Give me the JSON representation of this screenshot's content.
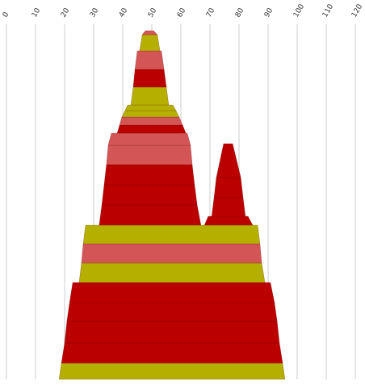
{
  "chart_data": {
    "type": "range-stack",
    "xlim": [
      0,
      120
    ],
    "xticks": [
      0,
      10,
      20,
      30,
      40,
      50,
      60,
      70,
      80,
      90,
      100,
      110,
      120
    ],
    "grid": true,
    "segments": [
      {
        "color": "#b5b000",
        "values": [
          18.1,
          95.8,
          18.9,
          95.0
        ]
      },
      {
        "color": "#bb0000",
        "values": [
          18.9,
          95.0,
          20.0,
          93.9
        ]
      },
      {
        "color": "#bb0000",
        "values": [
          20.0,
          93.9,
          20.8,
          93.1
        ]
      },
      {
        "color": "#bb0000",
        "values": [
          20.8,
          93.1,
          21.7,
          92.2
        ]
      },
      {
        "color": "#bb0000",
        "values": [
          21.7,
          92.2,
          22.8,
          90.8
        ]
      },
      {
        "color": "#b5b000",
        "values": [
          25.0,
          88.9,
          25.8,
          87.8
        ]
      },
      {
        "color": "#d45555",
        "values": [
          25.8,
          87.8,
          26.4,
          87.2
        ]
      },
      {
        "color": "#b5b000",
        "values": [
          26.4,
          87.2,
          27.2,
          86.4
        ]
      },
      {
        "color": "#bb0000",
        "values": [
          31.9,
          66.9,
          32.8,
          65.6
        ]
      },
      {
        "color": "#bb0000",
        "values": [
          32.8,
          65.6,
          33.6,
          64.7
        ]
      },
      {
        "color": "#bb0000",
        "values": [
          33.6,
          64.7,
          34.4,
          63.9
        ]
      },
      {
        "color": "#d45555",
        "values": [
          34.4,
          63.9,
          35.0,
          63.3
        ]
      },
      {
        "color": "#d45555",
        "values": [
          35.0,
          63.3,
          36.1,
          62.2
        ]
      },
      {
        "color": "#bb0000",
        "values": [
          38.1,
          61.7,
          38.9,
          60.6
        ]
      },
      {
        "color": "#d45555",
        "values": [
          38.9,
          60.6,
          39.7,
          59.4
        ]
      },
      {
        "color": "#b5b000",
        "values": [
          39.7,
          59.4,
          40.8,
          58.3
        ]
      },
      {
        "color": "#b5b000",
        "values": [
          40.8,
          58.3,
          41.7,
          57.2
        ]
      },
      {
        "color": "#b5b000",
        "values": [
          42.8,
          55.8,
          43.6,
          55.0
        ]
      },
      {
        "color": "#bb0000",
        "values": [
          43.6,
          55.0,
          44.2,
          54.2
        ]
      },
      {
        "color": "#d45555",
        "values": [
          44.2,
          54.2,
          45.0,
          53.3
        ]
      },
      {
        "color": "#b5b000",
        "values": [
          45.8,
          52.8,
          46.7,
          51.9
        ]
      },
      {
        "color": "#d45555",
        "values": [
          46.7,
          51.9,
          47.8,
          50.6
        ]
      },
      {
        "color": "#bb0000",
        "values": [
          68.1,
          84.7,
          69.4,
          83.1
        ]
      },
      {
        "color": "#bb0000",
        "values": [
          70.6,
          82.2,
          71.4,
          81.4
        ]
      },
      {
        "color": "#bb0000",
        "values": [
          71.4,
          81.4,
          72.2,
          80.6
        ]
      },
      {
        "color": "#bb0000",
        "values": [
          72.2,
          80.6,
          74.7,
          77.8
        ]
      }
    ]
  }
}
